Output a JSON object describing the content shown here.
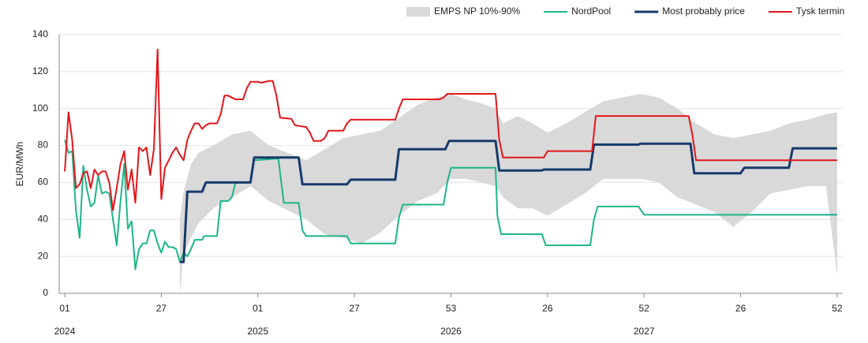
{
  "chart_data": {
    "type": "line",
    "y_label": "EUR/MWh",
    "xlim": [
      -1.5,
      209.5
    ],
    "xticks": [
      {
        "value": 0,
        "label": "01"
      },
      {
        "value": 26,
        "label": "27"
      },
      {
        "value": 52,
        "label": "01"
      },
      {
        "value": 78,
        "label": "27"
      },
      {
        "value": 104,
        "label": "53"
      },
      {
        "value": 130,
        "label": "26"
      },
      {
        "value": 156,
        "label": "52"
      },
      {
        "value": 182,
        "label": "26"
      },
      {
        "value": 208,
        "label": "52"
      }
    ],
    "years": [
      {
        "value": 0,
        "label": "2024"
      },
      {
        "value": 52,
        "label": "2025"
      },
      {
        "value": 104,
        "label": "2026"
      },
      {
        "value": 156,
        "label": "2027"
      }
    ],
    "ylim": [
      0,
      140
    ],
    "yticks": [
      0,
      20,
      40,
      60,
      80,
      100,
      120,
      140
    ],
    "grid": true,
    "legend": "top-right",
    "band": {
      "name": "EMPS NP 10%-90%",
      "color": "#d9d9d9",
      "x": [
        31,
        32,
        34,
        36,
        40,
        45,
        50,
        55,
        60,
        65,
        70,
        75,
        80,
        85,
        90,
        95,
        100,
        104,
        108,
        112,
        116,
        118,
        122,
        126,
        130,
        135,
        140,
        145,
        150,
        155,
        160,
        165,
        170,
        175,
        180,
        185,
        190,
        195,
        200,
        205,
        208
      ],
      "upper": [
        40,
        55,
        70,
        76,
        80,
        86,
        88,
        80,
        76,
        72,
        78,
        84,
        86,
        88,
        95,
        102,
        106,
        108,
        105,
        103,
        100,
        92,
        96,
        92,
        87,
        92,
        98,
        104,
        106,
        108,
        106,
        100,
        92,
        86,
        84,
        86,
        88,
        92,
        94,
        97,
        98
      ],
      "lower": [
        0,
        22,
        30,
        38,
        46,
        52,
        58,
        50,
        45,
        40,
        32,
        30,
        27,
        33,
        42,
        50,
        54,
        62,
        62,
        60,
        58,
        52,
        46,
        46,
        42,
        48,
        54,
        62,
        62,
        62,
        60,
        52,
        48,
        44,
        36,
        44,
        54,
        56,
        58,
        58,
        10
      ]
    },
    "series": [
      {
        "name": "NordPool",
        "color": "#1db58a",
        "x": [
          0,
          1,
          2,
          3,
          4,
          5,
          6,
          7,
          8,
          9,
          10,
          11,
          12,
          13,
          14,
          15,
          16,
          17,
          18,
          19,
          20,
          21,
          22,
          23,
          24,
          25,
          26,
          27,
          28,
          29,
          30,
          31,
          32,
          33,
          34,
          35,
          37,
          37.5,
          41,
          42,
          44,
          45,
          46,
          50,
          51,
          57.5,
          59,
          63,
          64,
          65,
          76,
          77,
          89,
          90,
          91,
          102,
          103,
          104,
          116,
          116.5,
          117.5,
          128.5,
          129.5,
          141.5,
          142.5,
          143.5,
          154.5,
          156,
          208
        ],
        "values": [
          83,
          76,
          77,
          45,
          30,
          69,
          56,
          47,
          49,
          64,
          54,
          55,
          54,
          40,
          26,
          50,
          70,
          35,
          39,
          13,
          24,
          27,
          27,
          34,
          34,
          27,
          22,
          28,
          25,
          25,
          24,
          17,
          22,
          20,
          24,
          29,
          29,
          31,
          31,
          50,
          50,
          52,
          60,
          60,
          72,
          73,
          49,
          49,
          34,
          31,
          31,
          27,
          27,
          41,
          48,
          48,
          60,
          68,
          68,
          42,
          32,
          32,
          26,
          26,
          40,
          47,
          47,
          42.5,
          42.5
        ]
      },
      {
        "name": "Most probably price",
        "color": "#173a6a",
        "x": [
          31,
          32,
          33,
          37,
          38,
          50,
          51,
          63,
          64,
          76,
          77,
          89,
          90,
          102.5,
          103.5,
          116,
          117,
          128.5,
          129,
          141.5,
          142.5,
          154.5,
          155,
          168.5,
          169.5,
          182,
          183,
          195,
          196,
          208
        ],
        "values": [
          17,
          17,
          55,
          55,
          60,
          60,
          73.5,
          73.5,
          59,
          59,
          61.5,
          61.5,
          78,
          78,
          82.5,
          82.5,
          66.5,
          66.5,
          67,
          67,
          80.5,
          80.5,
          81,
          81,
          65,
          65,
          68,
          68,
          78.5,
          78.5
        ]
      },
      {
        "name": "Tysk termin",
        "color": "#e3161b",
        "x": [
          0,
          1,
          2,
          3,
          4,
          5,
          6,
          7,
          8,
          9,
          10,
          11,
          12,
          13,
          14,
          15,
          16,
          17,
          18,
          19,
          20,
          21,
          22,
          23,
          24,
          25,
          26,
          27,
          28,
          29,
          30,
          31,
          32,
          33,
          34,
          35,
          36,
          37,
          38,
          39,
          40,
          41,
          42,
          43,
          44,
          45,
          46,
          47,
          48,
          49,
          50,
          52,
          53,
          55,
          56,
          57,
          58,
          61,
          62,
          65,
          66,
          67,
          69,
          70,
          71,
          75,
          76,
          77,
          89,
          90,
          91,
          101,
          102,
          103,
          116,
          117,
          118,
          129,
          130,
          142,
          143,
          168,
          169,
          170,
          208
        ],
        "values": [
          66,
          98,
          83,
          57,
          59,
          65,
          66,
          57,
          67,
          64,
          66,
          66,
          60,
          45,
          57,
          70,
          77,
          56,
          67,
          49,
          79,
          77,
          79,
          64,
          78,
          132,
          51,
          68,
          72,
          76,
          79,
          75,
          72,
          83,
          88,
          92,
          92,
          89,
          91,
          92,
          92,
          92,
          97,
          107,
          107,
          106,
          105,
          105,
          105,
          111,
          114.5,
          114.5,
          114,
          115,
          115,
          107,
          95,
          94.5,
          91,
          90,
          87,
          82.5,
          82.5,
          84,
          88,
          88,
          92,
          94,
          94,
          100,
          105,
          105,
          106,
          108,
          108,
          83,
          73.5,
          73.5,
          77,
          77,
          96,
          96,
          86,
          72,
          72
        ]
      }
    ]
  }
}
